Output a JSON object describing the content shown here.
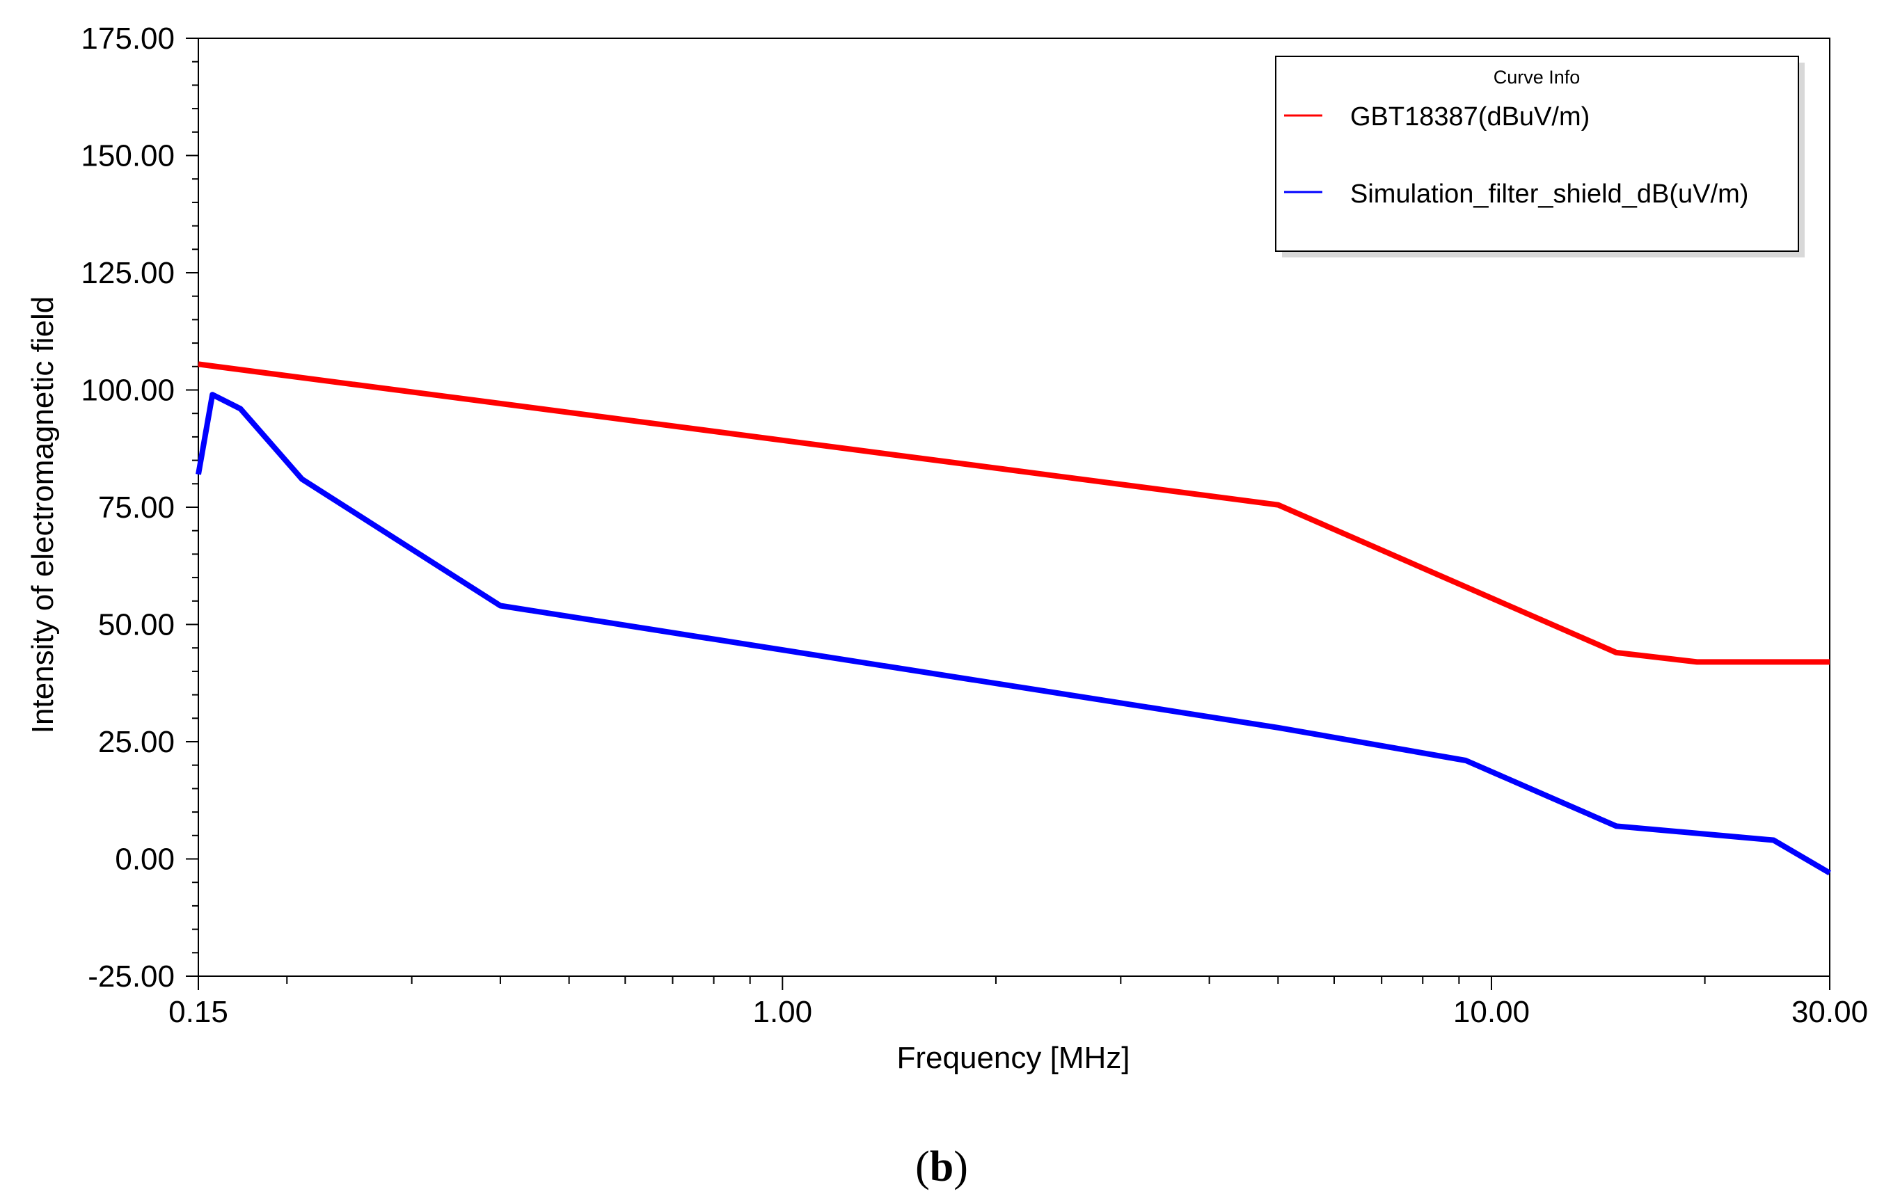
{
  "chart_data": {
    "type": "line",
    "xscale": "log",
    "xlabel": "Frequency [MHz]",
    "ylabel": "Intensity of electromagnetic field",
    "xlim": [
      0.15,
      30.0
    ],
    "ylim": [
      -25.0,
      175.0
    ],
    "x_ticks": [
      {
        "value": 0.15,
        "label": "0.15"
      },
      {
        "value": 1.0,
        "label": "1.00"
      },
      {
        "value": 10.0,
        "label": "10.00"
      },
      {
        "value": 30.0,
        "label": "30.00"
      }
    ],
    "y_ticks": [
      {
        "value": -25,
        "label": "-25.00"
      },
      {
        "value": 0,
        "label": "0.00"
      },
      {
        "value": 25,
        "label": "25.00"
      },
      {
        "value": 50,
        "label": "50.00"
      },
      {
        "value": 75,
        "label": "75.00"
      },
      {
        "value": 100,
        "label": "100.00"
      },
      {
        "value": 125,
        "label": "125.00"
      },
      {
        "value": 150,
        "label": "150.00"
      },
      {
        "value": 175,
        "label": "175.00"
      }
    ],
    "legend": {
      "title": "Curve Info",
      "position": "top-right"
    },
    "series": [
      {
        "name": "GBT18387(dBuV/m)",
        "color": "#ff0000",
        "x": [
          0.15,
          5.0,
          15.0,
          19.5,
          30.0
        ],
        "y": [
          105.5,
          75.5,
          44.0,
          42.0,
          42.0
        ]
      },
      {
        "name": "Simulation_filter_shield_dB(uV/m)",
        "color": "#0000ff",
        "x": [
          0.15,
          0.157,
          0.172,
          0.21,
          0.4,
          5.0,
          9.2,
          15.0,
          25.0,
          30.0
        ],
        "y": [
          82.0,
          99.0,
          96.0,
          81.0,
          54.0,
          28.0,
          21.0,
          7.0,
          4.0,
          -3.0
        ]
      }
    ]
  },
  "caption": {
    "open": "(",
    "letter": "b",
    "close": ")"
  }
}
